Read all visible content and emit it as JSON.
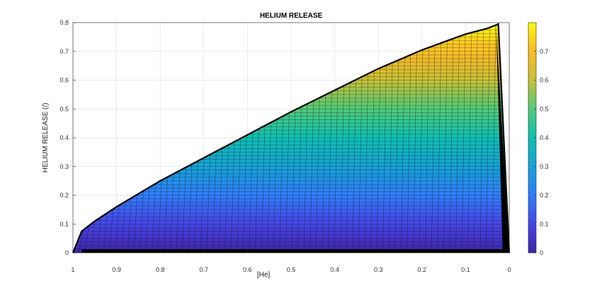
{
  "chart_data": {
    "type": "area",
    "title": "HELIUM RELEASE",
    "xlabel": "[He]",
    "ylabel": "HELIUM RELEASE (/)",
    "xlim": [
      0,
      1
    ],
    "ylim": [
      0,
      0.8
    ],
    "x_reversed": true,
    "x_ticks": [
      1,
      0.9,
      0.8,
      0.7,
      0.6,
      0.5,
      0.4,
      0.3,
      0.2,
      0.1,
      0
    ],
    "y_ticks": [
      0,
      0.1,
      0.2,
      0.3,
      0.4,
      0.5,
      0.6,
      0.7,
      0.8
    ],
    "grid": true,
    "colormap": "parula",
    "colorbar": {
      "ticks": [
        0,
        0.1,
        0.2,
        0.3,
        0.4,
        0.5,
        0.6,
        0.7
      ],
      "range": [
        0,
        0.8
      ],
      "colors": [
        "#3e26a8",
        "#4744e8",
        "#2f7efb",
        "#15a2d5",
        "#10bfb4",
        "#4ecb79",
        "#c7c035",
        "#feb827",
        "#f9fb0e"
      ]
    },
    "upper_envelope": {
      "x": [
        1.0,
        0.98,
        0.95,
        0.9,
        0.85,
        0.8,
        0.75,
        0.7,
        0.6,
        0.5,
        0.4,
        0.3,
        0.2,
        0.1,
        0.05,
        0.025,
        0.0
      ],
      "y": [
        0.0,
        0.075,
        0.11,
        0.16,
        0.205,
        0.25,
        0.29,
        0.33,
        0.41,
        0.49,
        0.565,
        0.64,
        0.705,
        0.76,
        0.78,
        0.795,
        0.0
      ]
    },
    "series": [
      {
        "values": [
          0,
          0.05,
          0.1,
          0.15,
          0.2,
          0.25,
          0.3,
          0.35,
          0.4,
          0.45,
          0.5,
          0.55,
          0.6,
          0.65,
          0.7,
          0.75
        ]
      }
    ]
  }
}
